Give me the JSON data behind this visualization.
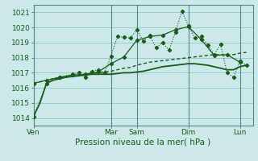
{
  "background_color": "#cce8e8",
  "grid_color": "#99cccc",
  "line_color": "#1a5c1a",
  "xlabel": "Pression niveau de la mer( hPa )",
  "ylim": [
    1013.5,
    1021.5
  ],
  "yticks": [
    1014,
    1015,
    1016,
    1017,
    1018,
    1019,
    1020,
    1021
  ],
  "day_labels": [
    "Ven",
    "Mar",
    "Sam",
    "Dim",
    "Lun"
  ],
  "day_positions": [
    0,
    12,
    16,
    24,
    32
  ],
  "xlim": [
    0,
    34
  ],
  "line_smooth": {
    "x": [
      0,
      1,
      2,
      3,
      4,
      5,
      6,
      7,
      8,
      9,
      10,
      11,
      12,
      13,
      14,
      15,
      16,
      17,
      18,
      19,
      20,
      21,
      22,
      23,
      24,
      25,
      26,
      27,
      28,
      29,
      30,
      31,
      32,
      33
    ],
    "y": [
      1014.1,
      1015.0,
      1016.3,
      1016.5,
      1016.6,
      1016.7,
      1016.75,
      1016.8,
      1016.85,
      1016.9,
      1016.9,
      1016.9,
      1016.9,
      1016.95,
      1017.0,
      1017.0,
      1017.05,
      1017.1,
      1017.2,
      1017.3,
      1017.4,
      1017.45,
      1017.5,
      1017.55,
      1017.6,
      1017.6,
      1017.55,
      1017.5,
      1017.4,
      1017.3,
      1017.2,
      1017.2,
      1017.4,
      1017.5
    ]
  },
  "line_dotted": {
    "x": [
      0,
      1,
      2,
      3,
      4,
      5,
      6,
      7,
      8,
      9,
      10,
      11,
      12,
      13,
      14,
      15,
      16,
      17,
      18,
      19,
      20,
      21,
      22,
      23,
      24,
      25,
      26,
      27,
      28,
      29,
      30,
      31,
      32,
      33
    ],
    "y": [
      1016.3,
      1016.4,
      1016.5,
      1016.6,
      1016.65,
      1016.7,
      1016.8,
      1016.85,
      1016.9,
      1016.95,
      1017.0,
      1017.05,
      1017.1,
      1017.2,
      1017.3,
      1017.35,
      1017.5,
      1017.6,
      1017.7,
      1017.75,
      1017.8,
      1017.85,
      1017.9,
      1017.95,
      1018.0,
      1018.05,
      1018.1,
      1018.15,
      1018.2,
      1018.2,
      1018.15,
      1018.2,
      1018.3,
      1018.35
    ]
  },
  "line_markers1": {
    "x": [
      0,
      2,
      4,
      6,
      7,
      8,
      9,
      10,
      11,
      12,
      13,
      14,
      15,
      16,
      17,
      18,
      19,
      20,
      21,
      22,
      23,
      24,
      25,
      26,
      27,
      28,
      29,
      30,
      31,
      32,
      33
    ],
    "y": [
      1014.1,
      1016.3,
      1016.7,
      1016.9,
      1017.0,
      1016.7,
      1017.1,
      1017.2,
      1017.0,
      1018.1,
      1019.4,
      1019.35,
      1019.3,
      1019.85,
      1019.1,
      1019.5,
      1018.65,
      1019.0,
      1018.5,
      1019.7,
      1021.1,
      1020.1,
      1019.3,
      1019.4,
      1018.85,
      1018.2,
      1018.9,
      1017.0,
      1016.7,
      1017.75,
      1017.5
    ]
  },
  "line_markers2": {
    "x": [
      0,
      2,
      4,
      6,
      8,
      10,
      12,
      14,
      16,
      18,
      20,
      22,
      24,
      26,
      28,
      30,
      32
    ],
    "y": [
      1016.3,
      1016.5,
      1016.7,
      1016.85,
      1016.9,
      1017.05,
      1017.6,
      1018.05,
      1019.15,
      1019.4,
      1019.5,
      1019.85,
      1020.05,
      1019.2,
      1018.15,
      1018.2,
      1017.7
    ]
  }
}
